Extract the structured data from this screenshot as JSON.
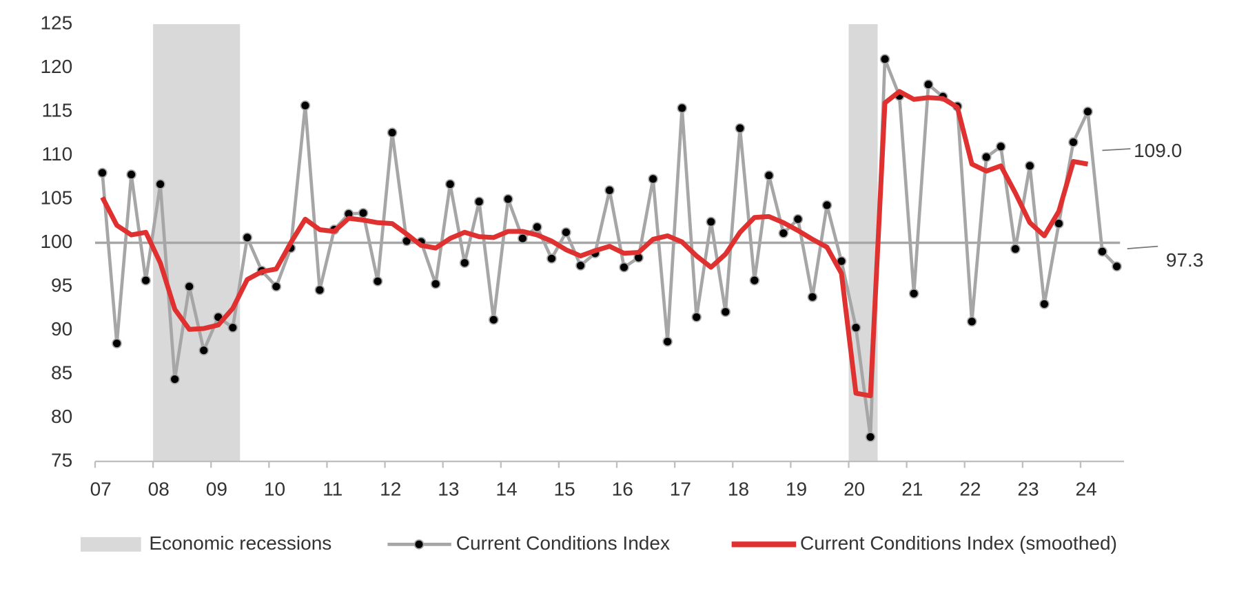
{
  "chart_data": {
    "type": "line",
    "x": [
      2007.125,
      2007.375,
      2007.625,
      2007.875,
      2008.125,
      2008.375,
      2008.625,
      2008.875,
      2009.125,
      2009.375,
      2009.625,
      2009.875,
      2010.125,
      2010.375,
      2010.625,
      2010.875,
      2011.125,
      2011.375,
      2011.625,
      2011.875,
      2012.125,
      2012.375,
      2012.625,
      2012.875,
      2013.125,
      2013.375,
      2013.625,
      2013.875,
      2014.125,
      2014.375,
      2014.625,
      2014.875,
      2015.125,
      2015.375,
      2015.625,
      2015.875,
      2016.125,
      2016.375,
      2016.625,
      2016.875,
      2017.125,
      2017.375,
      2017.625,
      2017.875,
      2018.125,
      2018.375,
      2018.625,
      2018.875,
      2019.125,
      2019.375,
      2019.625,
      2019.875,
      2020.125,
      2020.375,
      2020.625,
      2020.875,
      2021.125,
      2021.375,
      2021.625,
      2021.875,
      2022.125,
      2022.375,
      2022.625,
      2022.875,
      2023.125,
      2023.375,
      2023.625,
      2023.875,
      2024.125,
      2024.375,
      2024.625
    ],
    "series": [
      {
        "name": "Current Conditions Index",
        "color": "#a6a6a6",
        "marker_color": "#000000",
        "values": [
          108,
          88.5,
          107.8,
          95.7,
          106.7,
          84.4,
          95,
          87.7,
          91.5,
          90.3,
          100.6,
          96.8,
          95,
          99.4,
          115.7,
          94.6,
          101.5,
          103.3,
          103.4,
          95.6,
          112.6,
          100.2,
          100.1,
          95.3,
          106.7,
          97.7,
          104.7,
          91.2,
          105,
          100.5,
          101.8,
          98.2,
          101.2,
          97.4,
          98.8,
          106,
          97.2,
          98.3,
          107.3,
          88.7,
          115.4,
          91.5,
          102.4,
          92.1,
          113.1,
          95.7,
          107.7,
          101.1,
          102.7,
          93.8,
          104.3,
          97.9,
          90.3,
          77.8,
          121,
          116.8,
          94.2,
          118.1,
          116.7,
          115.6,
          91,
          109.8,
          111,
          99.3,
          108.8,
          93,
          102.2,
          111.5,
          115,
          99,
          97.3
        ]
      },
      {
        "name": "Current Conditions Index (smoothed)",
        "color": "#e03131",
        "values": [
          105.2,
          102,
          100.9,
          101.2,
          97.7,
          92.4,
          90.1,
          90.2,
          90.6,
          92.5,
          95.8,
          96.7,
          97,
          100,
          102.7,
          101.5,
          101.3,
          102.8,
          102.6,
          102.3,
          102.2,
          101,
          99.7,
          99.4,
          100.5,
          101.2,
          100.7,
          100.6,
          101.3,
          101.3,
          100.9,
          100.2,
          99.2,
          98.5,
          99.1,
          99.6,
          98.8,
          98.9,
          100.4,
          100.8,
          100.1,
          98.5,
          97.2,
          98.7,
          101.2,
          102.9,
          103,
          102.3,
          101.4,
          100.4,
          99.5,
          96.5,
          82.8,
          82.5,
          116,
          117.3,
          116.4,
          116.6,
          116.5,
          115.5,
          109,
          108.2,
          108.8,
          105.7,
          102.3,
          100.8,
          103.6,
          109.3,
          109,
          null,
          null
        ]
      }
    ],
    "recessions": {
      "name": "Economic recessions",
      "color": "#d9d9d9",
      "ranges": [
        [
          2008,
          2009.5
        ],
        [
          2020,
          2020.5
        ]
      ]
    },
    "reference_line": 100,
    "annotations": [
      "109.0",
      "97.3"
    ],
    "xlim": [
      2007,
      2024.75
    ],
    "xticks": [
      {
        "value": 2007,
        "label": "07"
      },
      {
        "value": 2008,
        "label": "08"
      },
      {
        "value": 2009,
        "label": "09"
      },
      {
        "value": 2010,
        "label": "10"
      },
      {
        "value": 2011,
        "label": "11"
      },
      {
        "value": 2012,
        "label": "12"
      },
      {
        "value": 2013,
        "label": "13"
      },
      {
        "value": 2014,
        "label": "14"
      },
      {
        "value": 2015,
        "label": "15"
      },
      {
        "value": 2016,
        "label": "16"
      },
      {
        "value": 2017,
        "label": "17"
      },
      {
        "value": 2018,
        "label": "18"
      },
      {
        "value": 2019,
        "label": "19"
      },
      {
        "value": 2020,
        "label": "20"
      },
      {
        "value": 2021,
        "label": "21"
      },
      {
        "value": 2022,
        "label": "22"
      },
      {
        "value": 2023,
        "label": "23"
      },
      {
        "value": 2024,
        "label": "24"
      }
    ],
    "ylim": [
      75,
      125
    ],
    "yticks": [
      75,
      80,
      85,
      90,
      95,
      100,
      105,
      110,
      115,
      120,
      125
    ]
  }
}
